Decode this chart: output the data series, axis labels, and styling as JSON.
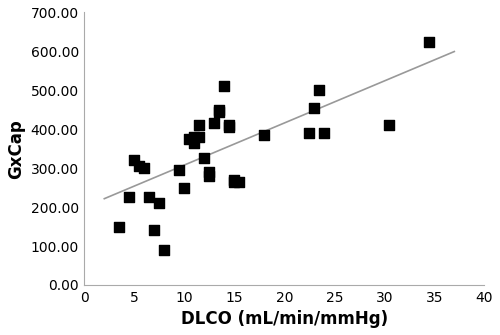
{
  "x_data": [
    3.5,
    4.5,
    5.0,
    5.5,
    6.0,
    6.5,
    7.0,
    7.5,
    8.0,
    9.5,
    10.0,
    10.5,
    11.0,
    11.0,
    11.5,
    11.5,
    12.0,
    12.5,
    12.5,
    13.0,
    13.5,
    13.5,
    14.0,
    14.5,
    14.5,
    15.0,
    15.0,
    15.5,
    18.0,
    22.5,
    23.0,
    23.5,
    24.0,
    30.5,
    34.5
  ],
  "y_data": [
    150,
    225,
    320,
    305,
    300,
    225,
    140,
    210,
    90,
    295,
    250,
    375,
    365,
    380,
    380,
    410,
    325,
    290,
    280,
    415,
    450,
    445,
    510,
    405,
    410,
    265,
    270,
    265,
    385,
    390,
    455,
    500,
    390,
    410,
    625
  ],
  "line_x": [
    2,
    37
  ],
  "line_slope": 10.8,
  "line_intercept": 200,
  "xlabel": "DLCO (mL/min/mmHg)",
  "ylabel": "GxCap",
  "xlim": [
    2,
    40
  ],
  "ylim": [
    0,
    700
  ],
  "xticks": [
    0,
    5,
    10,
    15,
    20,
    25,
    30,
    35,
    40
  ],
  "yticks": [
    0,
    100,
    200,
    300,
    400,
    500,
    600,
    700
  ],
  "ytick_labels": [
    "0.00",
    "100.00",
    "200.00",
    "300.00",
    "400.00",
    "500.00",
    "600.00",
    "700.00"
  ],
  "xtick_labels": [
    "0",
    "5",
    "10",
    "15",
    "20",
    "25",
    "30",
    "35",
    "40"
  ],
  "scatter_color": "#000000",
  "line_color": "#999999",
  "spine_color": "#aaaaaa",
  "background_color": "#ffffff",
  "marker_size": 55,
  "tick_label_fontsize": 10,
  "axis_label_fontsize": 12
}
